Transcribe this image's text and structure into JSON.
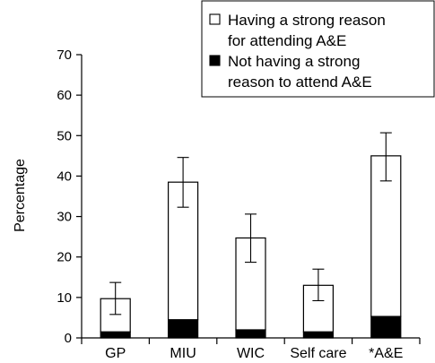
{
  "chart_data": {
    "type": "bar",
    "stacked": true,
    "categories": [
      "GP",
      "MIU",
      "WIC",
      "Self care",
      "*A&E"
    ],
    "series": [
      {
        "name": "Not having a strong reason to attend A&E",
        "values": [
          1.5,
          4.5,
          2,
          1.5,
          5.3
        ],
        "color": "#000000"
      },
      {
        "name": "Having a strong reason for attending A&E",
        "values": [
          8.2,
          34,
          22.7,
          11.5,
          39.7
        ],
        "color": "#ffffff"
      }
    ],
    "totals": [
      9.7,
      38.5,
      24.7,
      13,
      45
    ],
    "error_bars": [
      [
        5.8,
        13.7
      ],
      [
        32.3,
        44.6
      ],
      [
        18.7,
        30.6
      ],
      [
        9.2,
        17
      ],
      [
        38.8,
        50.7
      ]
    ],
    "ylabel": "Percentage",
    "xlabel": "",
    "ylim": [
      0,
      70
    ],
    "yticks": [
      0,
      10,
      20,
      30,
      40,
      50,
      60,
      70
    ],
    "grid": false,
    "legend": {
      "placement": "top-right",
      "entries": [
        {
          "lines": [
            "Having a strong reason",
            "for attending A&E"
          ],
          "swatch": "#ffffff"
        },
        {
          "lines": [
            "Not having a strong",
            "reason to attend A&E"
          ],
          "swatch": "#000000"
        }
      ]
    }
  }
}
